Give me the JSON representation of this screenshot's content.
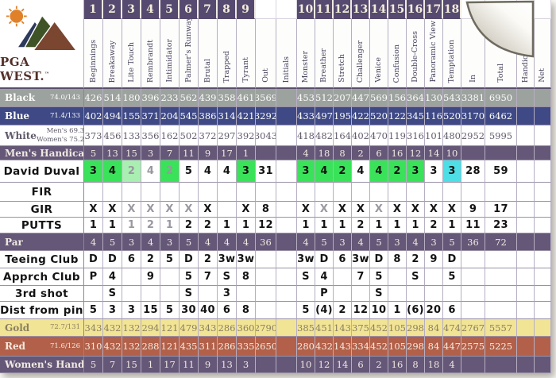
{
  "card": {
    "logo": {
      "text": "PGA WEST.",
      "tm": "TM"
    },
    "columns": {
      "front": {
        "numbers": [
          "1",
          "2",
          "3",
          "4",
          "5",
          "6",
          "7",
          "8",
          "9"
        ],
        "names": [
          "Beginnings",
          "Breakaway",
          "Lite Touch",
          "Rembrandt",
          "Intimidator",
          "Palmer's Runway",
          "Brutal",
          "Trapped",
          "Tyrant"
        ]
      },
      "out": {
        "label": "Out"
      },
      "initials": {
        "label": "Initials"
      },
      "back": {
        "numbers": [
          "10",
          "11",
          "12",
          "13",
          "14",
          "15",
          "16",
          "17",
          "18"
        ],
        "names": [
          "Monster",
          "Breather",
          "Stretch",
          "Challenger",
          "Venice",
          "Confusion",
          "Double-Cross",
          "Panoramic View",
          "Temptation"
        ]
      },
      "in": {
        "label": "In"
      },
      "total": {
        "label": "Total"
      },
      "handicap": {
        "label": "Handicap"
      },
      "net": {
        "label": "Net"
      }
    },
    "rows": [
      {
        "key": "black",
        "style": "gray",
        "label": "Black",
        "rating": "74.0/143",
        "front": [
          "426",
          "514",
          "180",
          "396",
          "233",
          "562",
          "439",
          "358",
          "461"
        ],
        "out": "3569",
        "back": [
          "453",
          "512",
          "207",
          "447",
          "569",
          "156",
          "364",
          "130",
          "543"
        ],
        "in": "3381",
        "total": "6950"
      },
      {
        "key": "blue",
        "style": "blue",
        "label": "Blue",
        "rating": "71.4/133",
        "front": [
          "402",
          "494",
          "155",
          "371",
          "204",
          "545",
          "386",
          "314",
          "421"
        ],
        "out": "3292",
        "back": [
          "433",
          "497",
          "195",
          "422",
          "520",
          "122",
          "345",
          "116",
          "520"
        ],
        "in": "3170",
        "total": "6462"
      },
      {
        "key": "white",
        "style": "white",
        "label": "White",
        "rating": "Men's 69.3/126",
        "rating2": "Women's 75.2/136",
        "front": [
          "373",
          "456",
          "133",
          "356",
          "162",
          "502",
          "372",
          "297",
          "392"
        ],
        "out": "3043",
        "back": [
          "418",
          "482",
          "164",
          "402",
          "470",
          "119",
          "316",
          "101",
          "480"
        ],
        "in": "2952",
        "total": "5995"
      },
      {
        "key": "mens-handicap",
        "style": "purple",
        "label": "Men's Handicap",
        "front": [
          "5",
          "13",
          "15",
          "3",
          "7",
          "11",
          "9",
          "17",
          "1"
        ],
        "out": "",
        "back": [
          "4",
          "18",
          "8",
          "2",
          "6",
          "16",
          "12",
          "14",
          "10"
        ],
        "in": "",
        "total": ""
      },
      {
        "key": "player",
        "style": "hand",
        "label": "David Duval",
        "front": [
          {
            "t": "3",
            "bg": "green"
          },
          {
            "t": "4",
            "bg": "green"
          },
          {
            "t": "2",
            "bg": "mint",
            "fg": "gray"
          },
          {
            "t": "4",
            "fg": "gray"
          },
          {
            "t": "2",
            "bg": "green",
            "fg": "gray"
          },
          "5",
          "4",
          "4",
          {
            "t": "3",
            "bg": "green"
          }
        ],
        "out": "31",
        "back": [
          {
            "t": "3",
            "bg": "green"
          },
          {
            "t": "4",
            "bg": "green"
          },
          {
            "t": "2",
            "bg": "green"
          },
          "4",
          {
            "t": "4",
            "bg": "green"
          },
          {
            "t": "2",
            "bg": "green"
          },
          {
            "t": "3",
            "bg": "green"
          },
          "3",
          {
            "t": "3",
            "bg": "cyan"
          }
        ],
        "in": "28",
        "total": "59"
      },
      {
        "key": "fir",
        "style": "hand",
        "label": "FIR",
        "front": [
          "",
          "",
          "",
          "",
          "",
          "",
          "",
          "",
          ""
        ],
        "out": "",
        "back": [
          "",
          "",
          "",
          "",
          "",
          "",
          "",
          "",
          ""
        ],
        "in": "",
        "total": ""
      },
      {
        "key": "gir",
        "style": "hand",
        "label": "GIR",
        "front": [
          "X",
          "X",
          {
            "t": "X",
            "fg": "gray"
          },
          {
            "t": "X",
            "fg": "gray"
          },
          {
            "t": "X",
            "fg": "gray"
          },
          {
            "t": "X",
            "fg": "gray"
          },
          "X",
          "",
          "X"
        ],
        "out": "8",
        "back": [
          "X",
          {
            "t": "X",
            "fg": "gray"
          },
          "X",
          "X",
          {
            "t": "X",
            "fg": "gray"
          },
          "X",
          "X",
          "X",
          "X"
        ],
        "in": "9",
        "total": "17"
      },
      {
        "key": "putts",
        "style": "hand",
        "label": "PUTTS",
        "front": [
          "1",
          "1",
          {
            "t": "1",
            "fg": "gray"
          },
          {
            "t": "2",
            "fg": "gray"
          },
          {
            "t": "1",
            "fg": "gray"
          },
          "2",
          "2",
          "1",
          "1"
        ],
        "out": "12",
        "back": [
          "1",
          "1",
          "1",
          "2",
          "1",
          "1",
          "1",
          "2",
          "1"
        ],
        "in": "11",
        "total": "23"
      },
      {
        "key": "par",
        "style": "purple",
        "label": "Par",
        "front": [
          "4",
          "5",
          "3",
          "4",
          "3",
          "5",
          "4",
          "4",
          "4"
        ],
        "out": "36",
        "back": [
          "4",
          "5",
          "3",
          "4",
          "5",
          "3",
          "4",
          "3",
          "5"
        ],
        "in": "36",
        "total": "72"
      },
      {
        "key": "teeing-club",
        "style": "hand",
        "label": "Teeing Club",
        "front": [
          "D",
          "D",
          "6",
          "2",
          "5",
          "D",
          "2",
          "3w",
          "3w"
        ],
        "out": "",
        "back": [
          "3w",
          "D",
          "6",
          "3w",
          "D",
          "8",
          "2",
          "9",
          "D"
        ],
        "in": "",
        "total": ""
      },
      {
        "key": "apprch-club",
        "style": "hand",
        "label": "Apprch Club",
        "front": [
          "P",
          "4",
          "",
          "9",
          "",
          "5",
          "7",
          "S",
          "8"
        ],
        "out": "",
        "back": [
          "S",
          "4",
          "",
          "7",
          "5",
          "",
          "S",
          "",
          "5"
        ],
        "in": "",
        "total": ""
      },
      {
        "key": "third-shot",
        "style": "hand",
        "label": "3rd shot",
        "front": [
          "",
          "S",
          "",
          "",
          "",
          "S",
          "",
          "3",
          ""
        ],
        "out": "",
        "back": [
          "",
          "P",
          "",
          "",
          "S",
          "",
          "",
          "",
          ""
        ],
        "in": "",
        "total": ""
      },
      {
        "key": "dist-from-pin",
        "style": "hand",
        "label": "Dist from pin",
        "front": [
          "5",
          "3",
          "3",
          "15",
          "5",
          "30",
          "40",
          "6",
          "8"
        ],
        "out": "",
        "back": [
          "5",
          "(4)",
          "2",
          "12",
          "10",
          "1",
          "(6)",
          "20",
          "6"
        ],
        "in": "",
        "total": ""
      },
      {
        "key": "gold",
        "style": "gold",
        "label": "Gold",
        "rating": "72.7/131",
        "front": [
          "343",
          "432",
          "132",
          "294",
          "121",
          "479",
          "343",
          "286",
          "360"
        ],
        "out": "2790",
        "back": [
          "385",
          "451",
          "143",
          "375",
          "452",
          "105",
          "298",
          "84",
          "474"
        ],
        "in": "2767",
        "total": "5557"
      },
      {
        "key": "red",
        "style": "red",
        "label": "Red",
        "rating": "71.6/126",
        "front": [
          "310",
          "432",
          "132",
          "288",
          "121",
          "435",
          "311",
          "286",
          "335"
        ],
        "out": "2650",
        "back": [
          "280",
          "432",
          "143",
          "334",
          "452",
          "105",
          "298",
          "84",
          "447"
        ],
        "in": "2575",
        "total": "5225"
      },
      {
        "key": "womens-handicap",
        "style": "purple",
        "label": "Women's Handicap",
        "front": [
          "5",
          "7",
          "15",
          "1",
          "17",
          "11",
          "9",
          "13",
          "3"
        ],
        "out": "",
        "back": [
          "10",
          "12",
          "14",
          "6",
          "2",
          "16",
          "8",
          "18",
          "4"
        ],
        "in": "",
        "total": ""
      }
    ]
  },
  "colors": {
    "header_purple": "#564a70",
    "band_purple": "#645777",
    "black_band": "#9ca29e",
    "blue_band": "#3e4986",
    "gold_band": "#f2e495",
    "red_band": "#b26049",
    "highlight_green": "#3ae25a",
    "highlight_mint": "#a9efb2",
    "highlight_cyan": "#4ddfe5",
    "handwriting": "#131313",
    "handwriting_gray": "#9a97a0"
  }
}
